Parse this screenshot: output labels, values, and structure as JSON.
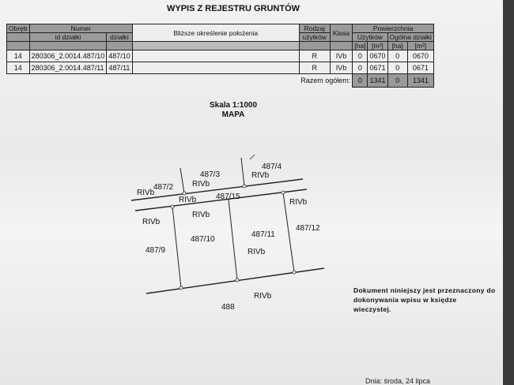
{
  "title": "WYPIS Z REJESTRU GRUNTÓW",
  "table": {
    "headers": {
      "obreb": "Obręb",
      "numer": "Numer",
      "id_dzialki": "id działki",
      "dzialki": "działki",
      "blizsze": "Bliższe określenie położenia",
      "rodzaj": "Rodzaj",
      "uzytkow": "użytków",
      "klasa": "Klasa",
      "powierzchnia": "Powierzchnia",
      "uzytkow_area": "Użytków",
      "ogolna": "Ogólna działki",
      "ha": "[ha]",
      "m2": "[m²]"
    },
    "rows": [
      {
        "obreb": "14",
        "id": "280306_2.0014.487/10",
        "dzialka": "487/10",
        "polozenie": "",
        "rodzaj": "R",
        "klasa": "IVb",
        "uz_ha": "0",
        "uz_m2": "0670",
        "og_ha": "0",
        "og_m2": "0670"
      },
      {
        "obreb": "14",
        "id": "280306_2.0014.487/11",
        "dzialka": "487/11",
        "polozenie": "",
        "rodzaj": "R",
        "klasa": "IVb",
        "uz_ha": "0",
        "uz_m2": "0671",
        "og_ha": "0",
        "og_m2": "0671"
      }
    ],
    "total": {
      "label": "Razem ogółem:",
      "uz_ha": "0",
      "uz_m2": "1341",
      "og_ha": "0",
      "og_m2": "1341"
    }
  },
  "scale": "Skala 1:1000",
  "map_title": "MAPA",
  "map_labels": {
    "p487_2": "487/2",
    "p487_3": "487/3",
    "p487_4": "487/4",
    "p487_15": "487/15",
    "p487_9": "487/9",
    "p487_10": "487/10",
    "p487_11": "487/11",
    "p487_12": "487/12",
    "p488": "488",
    "rivb": "RIVb"
  },
  "note": "Dokument niniejszy jest przeznaczony do dokonywania wpisu w księdze wieczystej.",
  "date_partial": "Dnia: środa, 24 lipca"
}
